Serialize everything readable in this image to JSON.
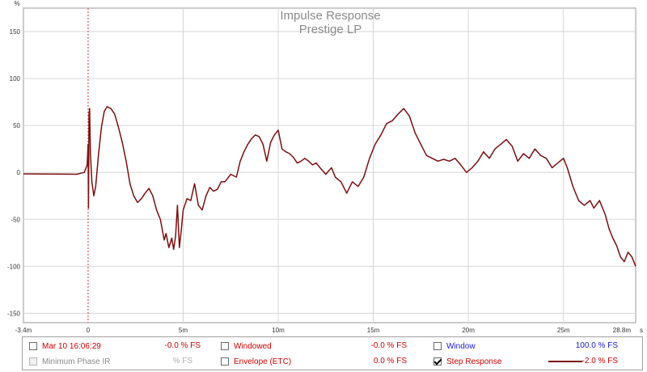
{
  "chart_data": {
    "type": "line",
    "title": "Impulse Response",
    "subtitle": "Prestige LP",
    "ylabel": "%",
    "x_unit_label": "s",
    "xlim": [
      -3.4,
      28.8
    ],
    "ylim": [
      -160,
      175
    ],
    "x_ticks": [
      {
        "value": -3.4,
        "label": "-3.4m"
      },
      {
        "value": 0,
        "label": "0"
      },
      {
        "value": 5,
        "label": "5m"
      },
      {
        "value": 10,
        "label": "10m"
      },
      {
        "value": 15,
        "label": "15m"
      },
      {
        "value": 20,
        "label": "20m"
      },
      {
        "value": 25,
        "label": "25m"
      },
      {
        "value": 28.8,
        "label": "28.8m"
      }
    ],
    "y_ticks": [
      150,
      100,
      50,
      0,
      -50,
      -100,
      -150
    ],
    "grid": true,
    "marker_x": 0,
    "series": [
      {
        "name": "Step Response",
        "color": "#7a1010",
        "points": [
          [
            -3.4,
            -1.5
          ],
          [
            -2.5,
            -1.6
          ],
          [
            -1.5,
            -1.8
          ],
          [
            -0.6,
            -2.0
          ],
          [
            -0.2,
            0
          ],
          [
            -0.05,
            8
          ],
          [
            0.0,
            30
          ],
          [
            0.02,
            -38
          ],
          [
            0.05,
            62
          ],
          [
            0.08,
            68
          ],
          [
            0.12,
            20
          ],
          [
            0.2,
            -10
          ],
          [
            0.3,
            -25
          ],
          [
            0.4,
            -15
          ],
          [
            0.55,
            20
          ],
          [
            0.7,
            48
          ],
          [
            0.85,
            65
          ],
          [
            1.0,
            70
          ],
          [
            1.2,
            68
          ],
          [
            1.4,
            62
          ],
          [
            1.6,
            48
          ],
          [
            1.8,
            32
          ],
          [
            2.0,
            12
          ],
          [
            2.2,
            -12
          ],
          [
            2.4,
            -25
          ],
          [
            2.6,
            -32
          ],
          [
            2.8,
            -28
          ],
          [
            3.0,
            -22
          ],
          [
            3.2,
            -17
          ],
          [
            3.4,
            -25
          ],
          [
            3.6,
            -40
          ],
          [
            3.8,
            -50
          ],
          [
            4.0,
            -72
          ],
          [
            4.1,
            -65
          ],
          [
            4.25,
            -80
          ],
          [
            4.4,
            -70
          ],
          [
            4.5,
            -82
          ],
          [
            4.6,
            -68
          ],
          [
            4.7,
            -35
          ],
          [
            4.8,
            -80
          ],
          [
            4.9,
            -62
          ],
          [
            5.0,
            -40
          ],
          [
            5.2,
            -28
          ],
          [
            5.4,
            -30
          ],
          [
            5.6,
            -12
          ],
          [
            5.8,
            -35
          ],
          [
            6.0,
            -40
          ],
          [
            6.2,
            -25
          ],
          [
            6.4,
            -16
          ],
          [
            6.6,
            -20
          ],
          [
            6.8,
            -18
          ],
          [
            7.0,
            -10
          ],
          [
            7.2,
            -10
          ],
          [
            7.5,
            -2
          ],
          [
            7.8,
            -5
          ],
          [
            8.0,
            12
          ],
          [
            8.2,
            22
          ],
          [
            8.4,
            30
          ],
          [
            8.6,
            36
          ],
          [
            8.8,
            40
          ],
          [
            9.0,
            38
          ],
          [
            9.2,
            30
          ],
          [
            9.4,
            12
          ],
          [
            9.6,
            32
          ],
          [
            9.8,
            40
          ],
          [
            10.0,
            45
          ],
          [
            10.2,
            25
          ],
          [
            10.4,
            22
          ],
          [
            10.6,
            20
          ],
          [
            10.8,
            16
          ],
          [
            11.0,
            10
          ],
          [
            11.2,
            12
          ],
          [
            11.4,
            15
          ],
          [
            11.6,
            12
          ],
          [
            11.8,
            8
          ],
          [
            12.0,
            10
          ],
          [
            12.2,
            5
          ],
          [
            12.5,
            -2
          ],
          [
            12.8,
            5
          ],
          [
            13.0,
            -5
          ],
          [
            13.3,
            -10
          ],
          [
            13.6,
            -22
          ],
          [
            13.9,
            -10
          ],
          [
            14.2,
            -15
          ],
          [
            14.5,
            -5
          ],
          [
            14.8,
            15
          ],
          [
            15.1,
            30
          ],
          [
            15.4,
            40
          ],
          [
            15.7,
            52
          ],
          [
            16.0,
            55
          ],
          [
            16.3,
            62
          ],
          [
            16.6,
            68
          ],
          [
            16.9,
            60
          ],
          [
            17.2,
            42
          ],
          [
            17.5,
            30
          ],
          [
            17.8,
            18
          ],
          [
            18.1,
            15
          ],
          [
            18.4,
            12
          ],
          [
            18.7,
            14
          ],
          [
            19.0,
            12
          ],
          [
            19.3,
            15
          ],
          [
            19.6,
            8
          ],
          [
            19.9,
            0
          ],
          [
            20.2,
            5
          ],
          [
            20.5,
            12
          ],
          [
            20.8,
            22
          ],
          [
            21.1,
            15
          ],
          [
            21.4,
            25
          ],
          [
            21.7,
            30
          ],
          [
            22.0,
            35
          ],
          [
            22.3,
            28
          ],
          [
            22.6,
            12
          ],
          [
            22.9,
            20
          ],
          [
            23.2,
            15
          ],
          [
            23.5,
            25
          ],
          [
            23.8,
            18
          ],
          [
            24.1,
            15
          ],
          [
            24.4,
            5
          ],
          [
            24.7,
            10
          ],
          [
            25.0,
            15
          ],
          [
            25.2,
            5
          ],
          [
            25.5,
            -15
          ],
          [
            25.8,
            -30
          ],
          [
            26.1,
            -35
          ],
          [
            26.4,
            -30
          ],
          [
            26.6,
            -38
          ],
          [
            26.9,
            -30
          ],
          [
            27.2,
            -45
          ],
          [
            27.4,
            -60
          ],
          [
            27.6,
            -70
          ],
          [
            27.8,
            -78
          ],
          [
            28.0,
            -90
          ],
          [
            28.2,
            -95
          ],
          [
            28.4,
            -85
          ],
          [
            28.6,
            -90
          ],
          [
            28.8,
            -100
          ]
        ]
      }
    ]
  },
  "legend": {
    "row1": {
      "measurement": {
        "label": "Mar 10 16:06:29",
        "value": "-0.0 % FS",
        "color": "#cc0000"
      },
      "windowed": {
        "label": "Windowed",
        "value": "-0.0 % FS",
        "color": "#cc0000"
      },
      "window": {
        "label": "Window",
        "value": "100.0 % FS",
        "color": "#1a1acc"
      }
    },
    "row2": {
      "minimum_phase": {
        "label": "Minimum Phase IR",
        "value": "% FS",
        "color": "#8a8a8a"
      },
      "envelope": {
        "label": "Envelope (ETC)",
        "value": "0.0 % FS",
        "color": "#cc0000"
      },
      "step_response": {
        "label": "Step Response",
        "value": "-2.0 % FS",
        "color": "#cc0000",
        "swatch": "#7a1010"
      }
    }
  }
}
